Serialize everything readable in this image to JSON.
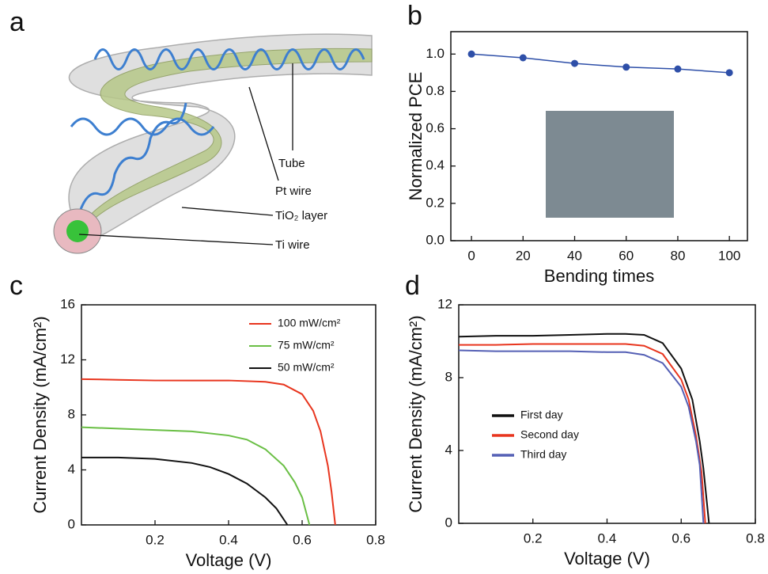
{
  "diagram": {
    "panel_label": "a",
    "labels": [
      "Tube",
      "Pt wire",
      "TiO₂ layer",
      "Ti wire"
    ]
  },
  "chart_data": [
    {
      "type": "line",
      "panel_label": "b",
      "x_label": "Bending times",
      "y_label": "Normalized PCE",
      "x": [
        0,
        20,
        40,
        60,
        80,
        100
      ],
      "series": [
        {
          "color": "#2e4fa8",
          "values": [
            1.0,
            0.98,
            0.95,
            0.93,
            0.92,
            0.9
          ]
        }
      ],
      "markers": true,
      "xlim": [
        -8,
        107
      ],
      "xticks": [
        0,
        20,
        40,
        60,
        80,
        100
      ],
      "ylim": [
        0,
        1.12
      ],
      "yticks": [
        {
          "value": 0,
          "label": "0.0"
        },
        0.2,
        0.4,
        0.6,
        0.8,
        {
          "value": 1,
          "label": "1.0"
        }
      ]
    },
    {
      "type": "line",
      "panel_label": "c",
      "x_label": "Voltage (V)",
      "y_label": "Current Density (mA/cm²)",
      "legend": "top-right",
      "series": [
        {
          "name": "100 mW/cm²",
          "color": "#e8351e",
          "x": [
            0,
            0.1,
            0.2,
            0.3,
            0.4,
            0.5,
            0.55,
            0.6,
            0.63,
            0.65,
            0.67,
            0.68,
            0.69
          ],
          "values": [
            10.6,
            10.55,
            10.5,
            10.5,
            10.5,
            10.4,
            10.2,
            9.5,
            8.3,
            6.8,
            4.3,
            2.4,
            0
          ]
        },
        {
          "name": "75 mW/cm²",
          "color": "#6abf45",
          "x": [
            0,
            0.1,
            0.2,
            0.3,
            0.4,
            0.45,
            0.5,
            0.55,
            0.58,
            0.6,
            0.62
          ],
          "values": [
            7.1,
            7.0,
            6.9,
            6.8,
            6.5,
            6.2,
            5.5,
            4.3,
            3.1,
            2.0,
            0
          ]
        },
        {
          "name": "50 mW/cm²",
          "color": "#111111",
          "x": [
            0,
            0.1,
            0.2,
            0.3,
            0.35,
            0.4,
            0.45,
            0.5,
            0.53,
            0.56
          ],
          "values": [
            4.9,
            4.9,
            4.8,
            4.5,
            4.2,
            3.7,
            3.0,
            2.0,
            1.2,
            0
          ]
        }
      ],
      "xlim": [
        0,
        0.8
      ],
      "xticks": [
        0.2,
        0.4,
        0.6,
        0.8
      ],
      "ylim": [
        0,
        16
      ],
      "yticks": [
        0,
        4,
        8,
        12,
        16
      ]
    },
    {
      "type": "line",
      "panel_label": "d",
      "x_label": "Voltage (V)",
      "y_label": "Current Density (mA/cm²)",
      "legend": "middle-left",
      "series": [
        {
          "name": "First day",
          "color": "#111111",
          "x": [
            0,
            0.1,
            0.2,
            0.3,
            0.4,
            0.45,
            0.5,
            0.55,
            0.6,
            0.63,
            0.65,
            0.66,
            0.675
          ],
          "values": [
            10.25,
            10.3,
            10.3,
            10.35,
            10.4,
            10.4,
            10.35,
            9.9,
            8.5,
            6.8,
            4.5,
            3.0,
            0
          ]
        },
        {
          "name": "Second day",
          "color": "#e8351e",
          "x": [
            0,
            0.1,
            0.2,
            0.3,
            0.4,
            0.45,
            0.5,
            0.55,
            0.6,
            0.62,
            0.64,
            0.655,
            0.665
          ],
          "values": [
            9.8,
            9.8,
            9.85,
            9.85,
            9.85,
            9.85,
            9.75,
            9.3,
            7.9,
            6.8,
            4.8,
            2.8,
            0
          ]
        },
        {
          "name": "Third day",
          "color": "#5560b5",
          "x": [
            0,
            0.1,
            0.2,
            0.3,
            0.4,
            0.45,
            0.5,
            0.55,
            0.6,
            0.62,
            0.64,
            0.65,
            0.66
          ],
          "values": [
            9.5,
            9.45,
            9.45,
            9.45,
            9.4,
            9.4,
            9.25,
            8.8,
            7.5,
            6.4,
            4.5,
            3.2,
            0
          ]
        }
      ],
      "xlim": [
        0,
        0.8
      ],
      "xticks": [
        0.2,
        0.4,
        0.6,
        0.8
      ],
      "ylim": [
        0,
        12
      ],
      "yticks": [
        0,
        4,
        8,
        12
      ]
    }
  ]
}
